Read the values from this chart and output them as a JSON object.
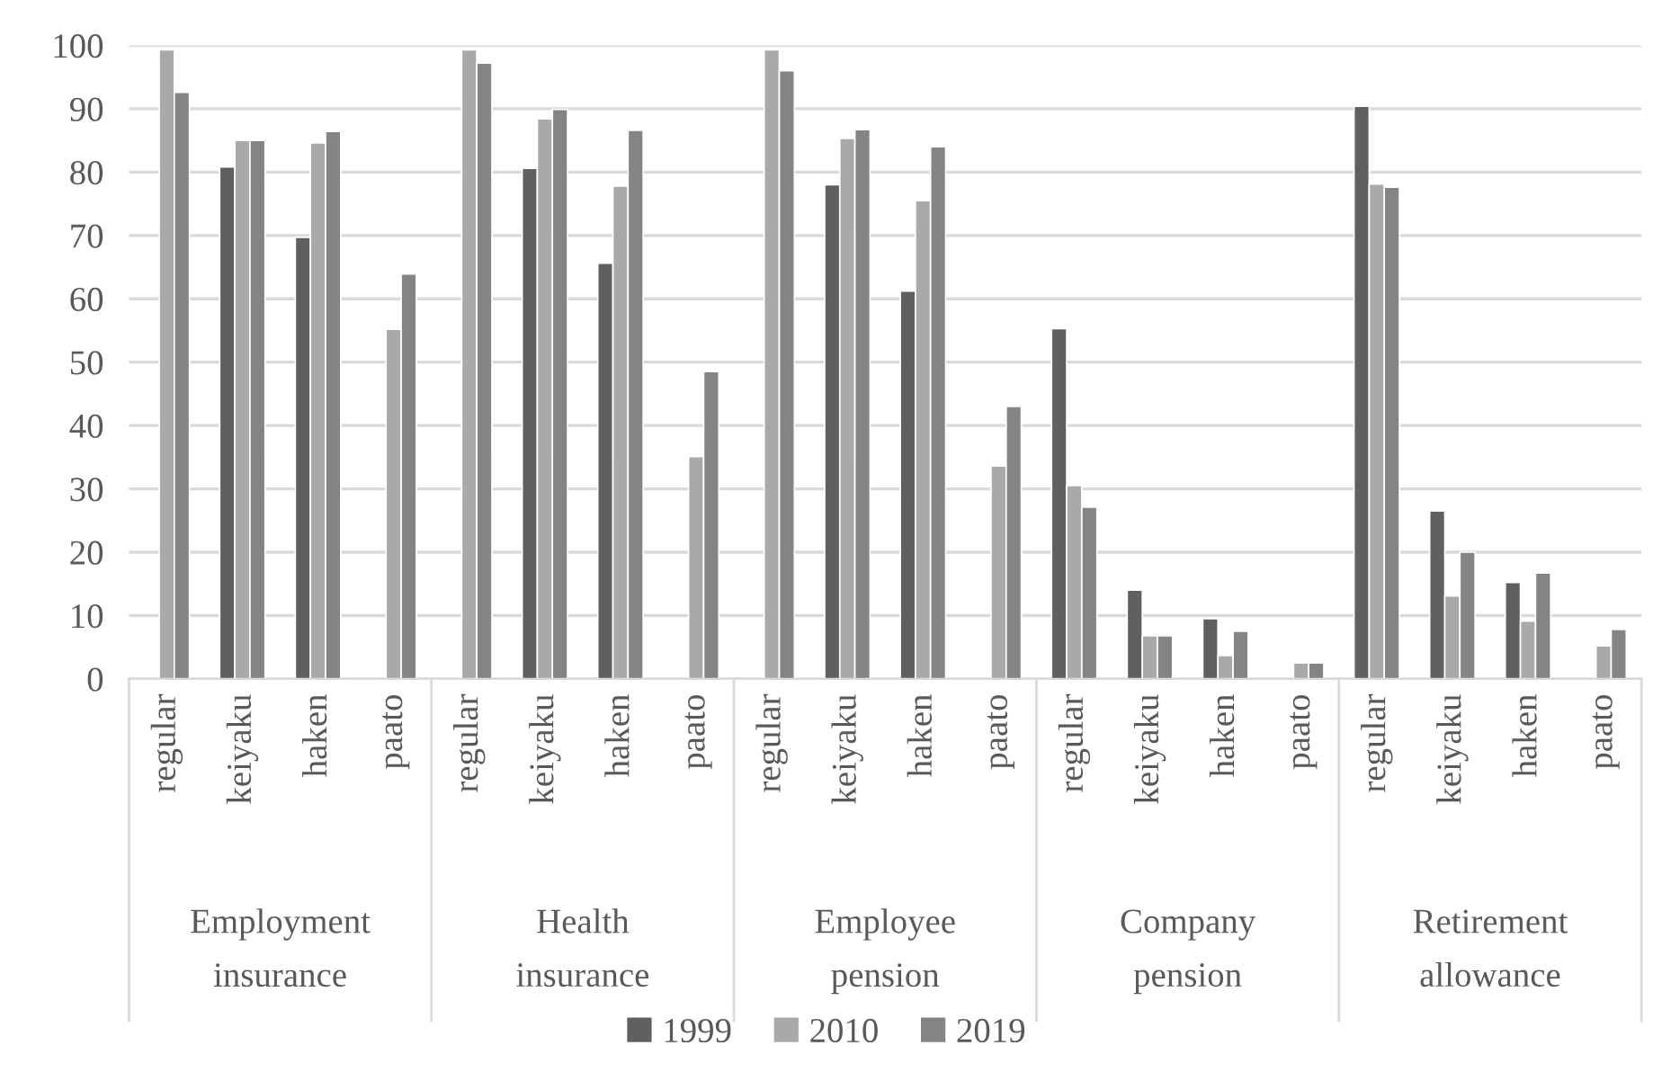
{
  "chart_data": {
    "type": "bar",
    "categories": [
      "regular",
      "keiyaku",
      "haken",
      "paato",
      "regular",
      "keiyaku",
      "haken",
      "paato",
      "regular",
      "keiyaku",
      "haken",
      "paato",
      "regular",
      "keiyaku",
      "haken",
      "paato",
      "regular",
      "keiyaku",
      "haken",
      "paato"
    ],
    "annotations": [
      "Employment insurance",
      "Health insurance",
      "Employee pension",
      "Company pension",
      "Retirement allowance"
    ],
    "series": [
      {
        "name": "1999",
        "color": "#5f6061",
        "values": [
          null,
          80.8,
          69.7,
          null,
          null,
          80.6,
          65.6,
          null,
          null,
          78.0,
          61.2,
          null,
          55.3,
          14.0,
          9.5,
          null,
          90.4,
          26.5,
          15.2,
          null
        ]
      },
      {
        "name": "2010",
        "color": "#a7a9aa",
        "values": [
          99.3,
          85.0,
          84.6,
          55.2,
          99.3,
          88.4,
          77.8,
          35.1,
          99.3,
          85.3,
          75.5,
          33.6,
          30.5,
          6.8,
          3.7,
          2.5,
          78.1,
          13.1,
          9.1,
          5.2
        ]
      },
      {
        "name": "2019",
        "color": "#838485",
        "values": [
          92.6,
          85.0,
          86.4,
          63.9,
          97.2,
          89.9,
          86.6,
          48.5,
          96.0,
          86.7,
          84.0,
          43.0,
          27.1,
          6.8,
          7.5,
          2.5,
          77.6,
          20.0,
          16.7,
          7.8
        ]
      }
    ],
    "ylim": [
      0,
      100
    ],
    "yticks": [
      0,
      10,
      20,
      30,
      40,
      50,
      60,
      70,
      80,
      90,
      100
    ],
    "grid": "y",
    "legend": "bottom"
  }
}
